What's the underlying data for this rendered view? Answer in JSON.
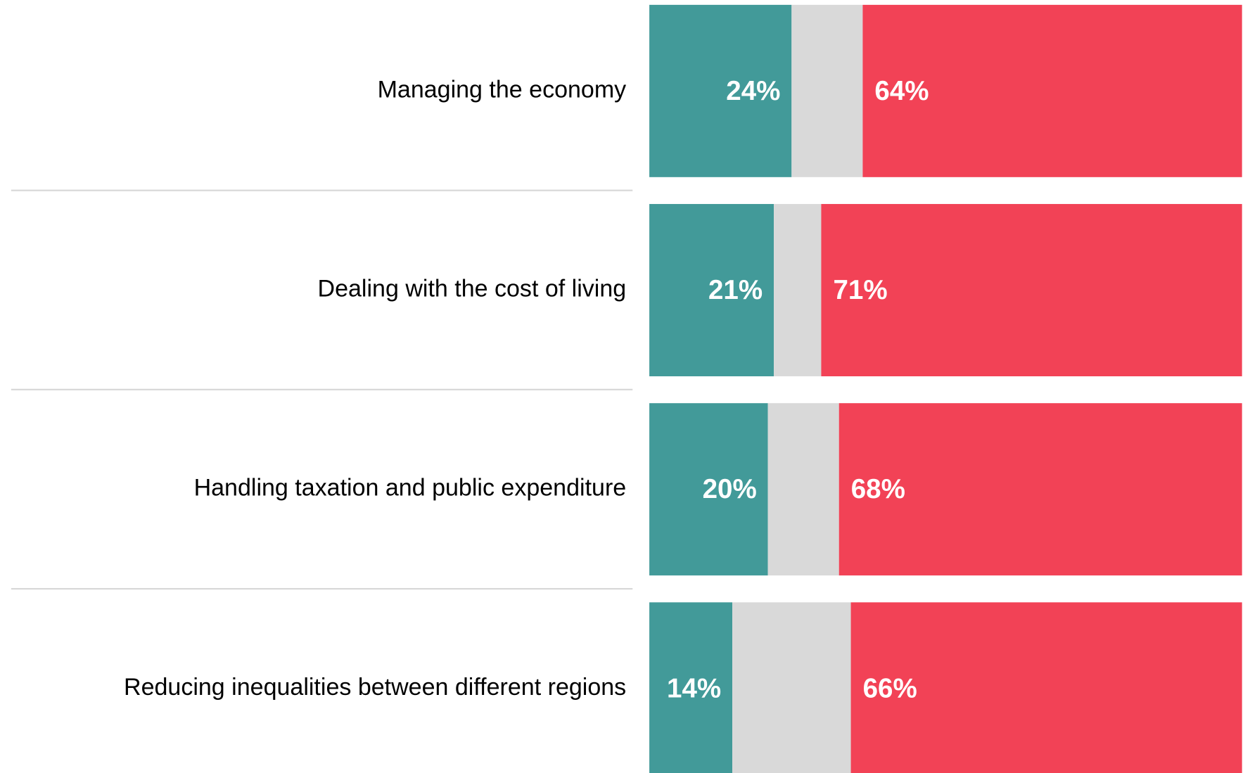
{
  "chart_data": {
    "type": "stacked-barh",
    "categories": [
      "Managing the economy",
      "Dealing with the cost of living",
      "Handling taxation and public expenditure",
      "Reducing inequalities between different regions"
    ],
    "series": [
      {
        "color": "#429a99",
        "values": [
          24,
          21,
          20,
          14
        ],
        "value_labels": [
          "24%",
          "21%",
          "20%",
          "14%"
        ]
      },
      {
        "color": "#d9d9d9",
        "values": [
          12,
          8,
          12,
          20
        ]
      },
      {
        "color": "#f24256",
        "values": [
          64,
          71,
          68,
          66
        ],
        "value_labels": [
          "64%",
          "71%",
          "68%",
          "66%"
        ]
      }
    ],
    "xlim": [
      0,
      100
    ]
  }
}
